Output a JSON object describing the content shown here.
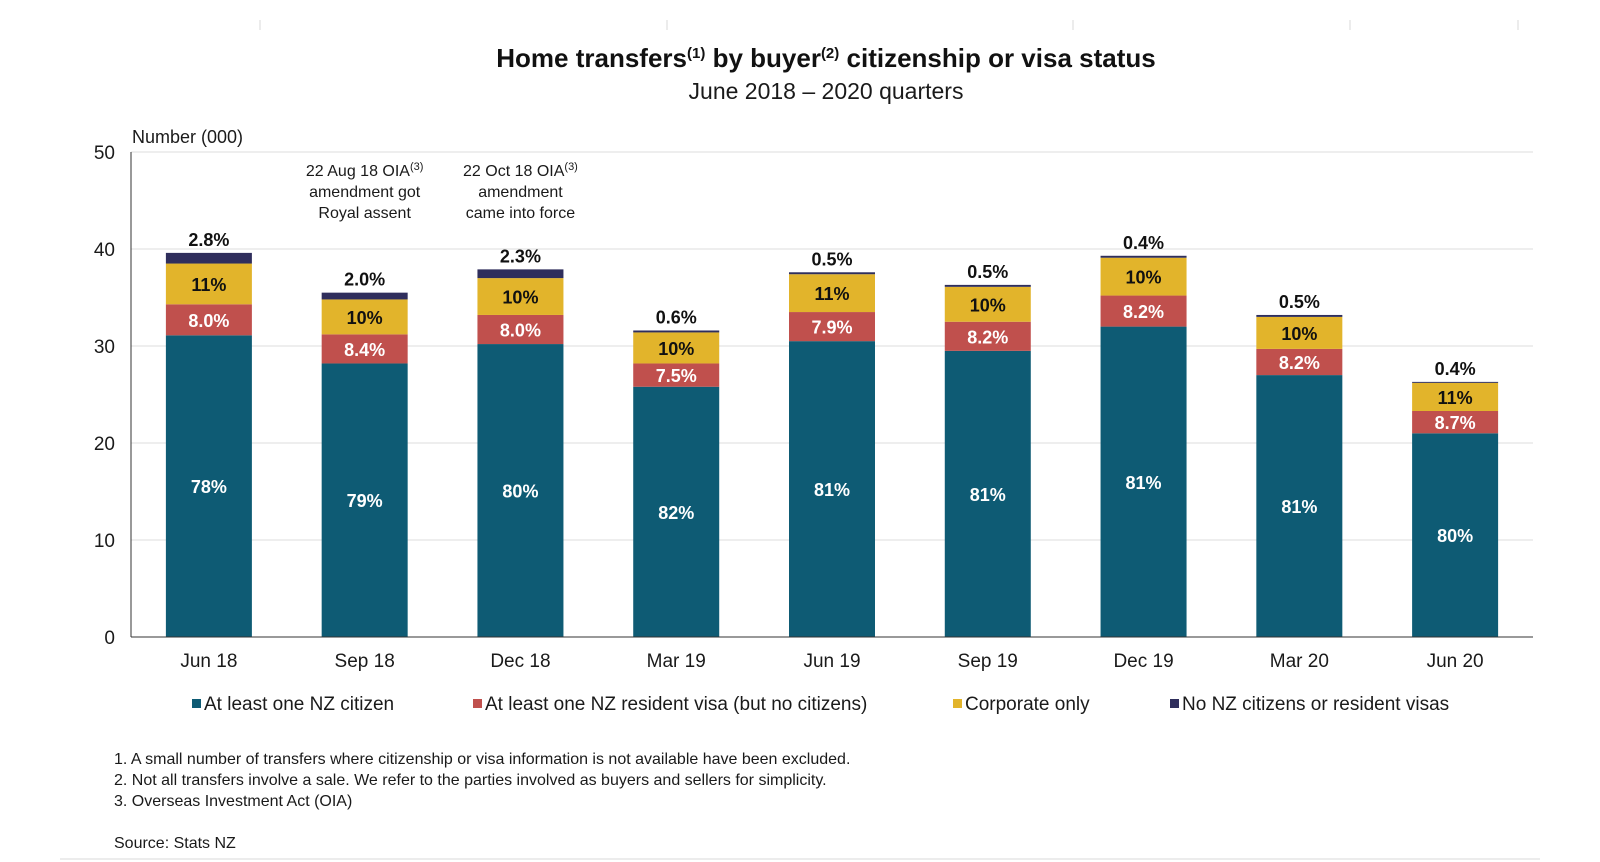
{
  "title": {
    "part1": "Home transfers",
    "sup1": "(1)",
    "part2": " by buyer",
    "sup2": "(2)",
    "part3": " citizenship or visa status"
  },
  "subtitle": "June 2018 – 2020 quarters",
  "chart_data": {
    "type": "bar",
    "stacked": true,
    "ylabel": "Number (000)",
    "ylim": [
      0,
      50
    ],
    "yticks": [
      0,
      10,
      20,
      30,
      40,
      50
    ],
    "grid": true,
    "legend_position": "bottom",
    "categories": [
      "Jun 18",
      "Sep 18",
      "Dec 18",
      "Mar 19",
      "Jun 19",
      "Sep 19",
      "Dec 19",
      "Mar 20",
      "Jun 20"
    ],
    "series": [
      {
        "name": "At least one NZ citizen",
        "color": "#0e5b74",
        "values": [
          31.1,
          28.2,
          30.2,
          25.8,
          30.5,
          29.5,
          32.0,
          27.0,
          21.0
        ],
        "labels": [
          "78%",
          "79%",
          "80%",
          "82%",
          "81%",
          "81%",
          "81%",
          "81%",
          "80%"
        ],
        "label_color": "#ffffff"
      },
      {
        "name": "At least one NZ resident visa (but no citizens)",
        "color": "#c0504d",
        "values": [
          3.2,
          3.0,
          3.0,
          2.4,
          3.0,
          3.0,
          3.2,
          2.7,
          2.3
        ],
        "labels": [
          "8.0%",
          "8.4%",
          "8.0%",
          "7.5%",
          "7.9%",
          "8.2%",
          "8.2%",
          "8.2%",
          "8.7%"
        ],
        "label_color": "#ffffff"
      },
      {
        "name": "Corporate only",
        "color": "#e2b42b",
        "values": [
          4.2,
          3.6,
          3.8,
          3.2,
          3.9,
          3.6,
          3.9,
          3.3,
          2.9
        ],
        "labels": [
          "11%",
          "10%",
          "10%",
          "10%",
          "11%",
          "10%",
          "10%",
          "10%",
          "11%"
        ],
        "label_color": "#111111"
      },
      {
        "name": "No NZ citizens or resident visas",
        "color": "#2f2e5c",
        "values": [
          1.1,
          0.7,
          0.9,
          0.2,
          0.2,
          0.2,
          0.2,
          0.2,
          0.1
        ],
        "labels": [
          "2.8%",
          "2.0%",
          "2.3%",
          "0.6%",
          "0.5%",
          "0.5%",
          "0.4%",
          "0.5%",
          "0.4%"
        ],
        "label_color": "#111111",
        "label_position": "above"
      }
    ],
    "annotations": [
      {
        "category": "Sep 18",
        "lines": [
          "22 Aug 18 OIA",
          "amendment got",
          "Royal assent"
        ],
        "sup": "(3)"
      },
      {
        "category": "Dec 18",
        "lines": [
          "22 Oct 18 OIA",
          "amendment",
          "came into force"
        ],
        "sup": "(3)"
      }
    ]
  },
  "footnotes": [
    "1. A small number of transfers where citizenship or visa information is not available have been excluded.",
    "2. Not all transfers involve a sale. We refer to the parties involved as buyers and sellers for simplicity.",
    "3. Overseas Investment Act (OIA)"
  ],
  "source": "Source: Stats NZ"
}
